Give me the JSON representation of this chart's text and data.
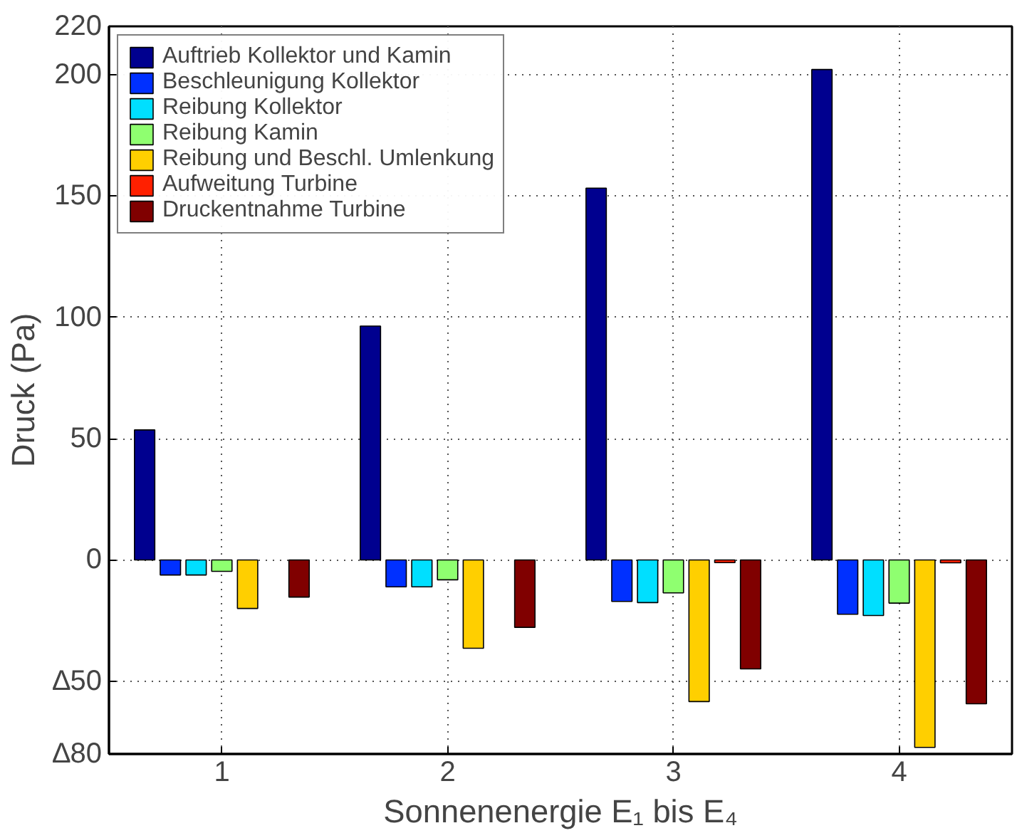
{
  "chart_data": {
    "type": "bar",
    "xlabel": "Sonnenenergie E₁ bis E₄",
    "ylabel": "Druck (Pa)",
    "categories": [
      "1",
      "2",
      "3",
      "4"
    ],
    "series": [
      {
        "name": "Auftrieb Kollektor und Kamin",
        "color": "#00008f",
        "values": [
          53.6,
          96.4,
          153.3,
          202.2
        ]
      },
      {
        "name": "Beschleunigung Kollektor",
        "color": "#0030ff",
        "values": [
          -6.2,
          -11.1,
          -17.1,
          -22.4
        ]
      },
      {
        "name": "Reibung Kollektor",
        "color": "#00dfff",
        "values": [
          -6.2,
          -11.1,
          -17.6,
          -22.9
        ]
      },
      {
        "name": "Reibung Kamin",
        "color": "#8fff70",
        "values": [
          -4.7,
          -8.2,
          -13.6,
          -17.8
        ]
      },
      {
        "name": "Reibung und Beschl. Umlenkung",
        "color": "#ffcf00",
        "values": [
          -20,
          -36.4,
          -58.4,
          -77.3
        ]
      },
      {
        "name": "Aufweitung Turbine",
        "color": "#ff2000",
        "values": [
          null,
          null,
          -1.1,
          -1.2
        ]
      },
      {
        "name": "Druckentnahme Turbine",
        "color": "#800000",
        "values": [
          -15.3,
          -27.8,
          -44.9,
          -59.3
        ]
      }
    ],
    "ylim": [
      -80,
      220
    ],
    "yticks": [
      {
        "value": -80,
        "label": "∆80"
      },
      {
        "value": -50,
        "label": "∆50"
      },
      0,
      50,
      100,
      150,
      200,
      220
    ],
    "grid": true,
    "legend": "top left"
  }
}
